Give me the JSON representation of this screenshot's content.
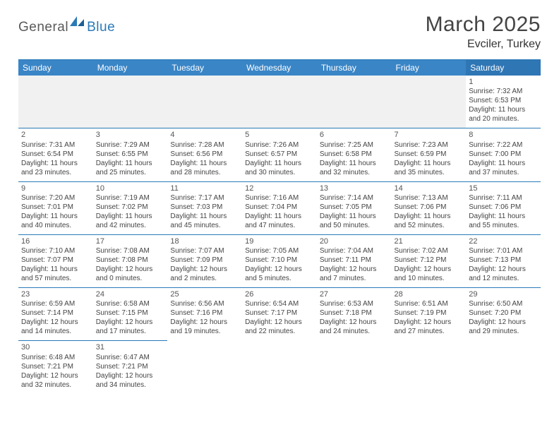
{
  "logo": {
    "part1": "General",
    "part2": "Blue"
  },
  "title": "March 2025",
  "location": "Evciler, Turkey",
  "colors": {
    "header_bg": "#3a85c6",
    "header_bg_sat": "#2f76b5",
    "border": "#2a7ab8",
    "logo_gray": "#5a5a5a",
    "logo_blue": "#2a7ab8"
  },
  "weekdays": [
    "Sunday",
    "Monday",
    "Tuesday",
    "Wednesday",
    "Thursday",
    "Friday",
    "Saturday"
  ],
  "weeks": [
    [
      null,
      null,
      null,
      null,
      null,
      null,
      {
        "n": "1",
        "sr": "Sunrise: 7:32 AM",
        "ss": "Sunset: 6:53 PM",
        "dl": "Daylight: 11 hours and 20 minutes."
      }
    ],
    [
      {
        "n": "2",
        "sr": "Sunrise: 7:31 AM",
        "ss": "Sunset: 6:54 PM",
        "dl": "Daylight: 11 hours and 23 minutes."
      },
      {
        "n": "3",
        "sr": "Sunrise: 7:29 AM",
        "ss": "Sunset: 6:55 PM",
        "dl": "Daylight: 11 hours and 25 minutes."
      },
      {
        "n": "4",
        "sr": "Sunrise: 7:28 AM",
        "ss": "Sunset: 6:56 PM",
        "dl": "Daylight: 11 hours and 28 minutes."
      },
      {
        "n": "5",
        "sr": "Sunrise: 7:26 AM",
        "ss": "Sunset: 6:57 PM",
        "dl": "Daylight: 11 hours and 30 minutes."
      },
      {
        "n": "6",
        "sr": "Sunrise: 7:25 AM",
        "ss": "Sunset: 6:58 PM",
        "dl": "Daylight: 11 hours and 32 minutes."
      },
      {
        "n": "7",
        "sr": "Sunrise: 7:23 AM",
        "ss": "Sunset: 6:59 PM",
        "dl": "Daylight: 11 hours and 35 minutes."
      },
      {
        "n": "8",
        "sr": "Sunrise: 7:22 AM",
        "ss": "Sunset: 7:00 PM",
        "dl": "Daylight: 11 hours and 37 minutes."
      }
    ],
    [
      {
        "n": "9",
        "sr": "Sunrise: 7:20 AM",
        "ss": "Sunset: 7:01 PM",
        "dl": "Daylight: 11 hours and 40 minutes."
      },
      {
        "n": "10",
        "sr": "Sunrise: 7:19 AM",
        "ss": "Sunset: 7:02 PM",
        "dl": "Daylight: 11 hours and 42 minutes."
      },
      {
        "n": "11",
        "sr": "Sunrise: 7:17 AM",
        "ss": "Sunset: 7:03 PM",
        "dl": "Daylight: 11 hours and 45 minutes."
      },
      {
        "n": "12",
        "sr": "Sunrise: 7:16 AM",
        "ss": "Sunset: 7:04 PM",
        "dl": "Daylight: 11 hours and 47 minutes."
      },
      {
        "n": "13",
        "sr": "Sunrise: 7:14 AM",
        "ss": "Sunset: 7:05 PM",
        "dl": "Daylight: 11 hours and 50 minutes."
      },
      {
        "n": "14",
        "sr": "Sunrise: 7:13 AM",
        "ss": "Sunset: 7:06 PM",
        "dl": "Daylight: 11 hours and 52 minutes."
      },
      {
        "n": "15",
        "sr": "Sunrise: 7:11 AM",
        "ss": "Sunset: 7:06 PM",
        "dl": "Daylight: 11 hours and 55 minutes."
      }
    ],
    [
      {
        "n": "16",
        "sr": "Sunrise: 7:10 AM",
        "ss": "Sunset: 7:07 PM",
        "dl": "Daylight: 11 hours and 57 minutes."
      },
      {
        "n": "17",
        "sr": "Sunrise: 7:08 AM",
        "ss": "Sunset: 7:08 PM",
        "dl": "Daylight: 12 hours and 0 minutes."
      },
      {
        "n": "18",
        "sr": "Sunrise: 7:07 AM",
        "ss": "Sunset: 7:09 PM",
        "dl": "Daylight: 12 hours and 2 minutes."
      },
      {
        "n": "19",
        "sr": "Sunrise: 7:05 AM",
        "ss": "Sunset: 7:10 PM",
        "dl": "Daylight: 12 hours and 5 minutes."
      },
      {
        "n": "20",
        "sr": "Sunrise: 7:04 AM",
        "ss": "Sunset: 7:11 PM",
        "dl": "Daylight: 12 hours and 7 minutes."
      },
      {
        "n": "21",
        "sr": "Sunrise: 7:02 AM",
        "ss": "Sunset: 7:12 PM",
        "dl": "Daylight: 12 hours and 10 minutes."
      },
      {
        "n": "22",
        "sr": "Sunrise: 7:01 AM",
        "ss": "Sunset: 7:13 PM",
        "dl": "Daylight: 12 hours and 12 minutes."
      }
    ],
    [
      {
        "n": "23",
        "sr": "Sunrise: 6:59 AM",
        "ss": "Sunset: 7:14 PM",
        "dl": "Daylight: 12 hours and 14 minutes."
      },
      {
        "n": "24",
        "sr": "Sunrise: 6:58 AM",
        "ss": "Sunset: 7:15 PM",
        "dl": "Daylight: 12 hours and 17 minutes."
      },
      {
        "n": "25",
        "sr": "Sunrise: 6:56 AM",
        "ss": "Sunset: 7:16 PM",
        "dl": "Daylight: 12 hours and 19 minutes."
      },
      {
        "n": "26",
        "sr": "Sunrise: 6:54 AM",
        "ss": "Sunset: 7:17 PM",
        "dl": "Daylight: 12 hours and 22 minutes."
      },
      {
        "n": "27",
        "sr": "Sunrise: 6:53 AM",
        "ss": "Sunset: 7:18 PM",
        "dl": "Daylight: 12 hours and 24 minutes."
      },
      {
        "n": "28",
        "sr": "Sunrise: 6:51 AM",
        "ss": "Sunset: 7:19 PM",
        "dl": "Daylight: 12 hours and 27 minutes."
      },
      {
        "n": "29",
        "sr": "Sunrise: 6:50 AM",
        "ss": "Sunset: 7:20 PM",
        "dl": "Daylight: 12 hours and 29 minutes."
      }
    ],
    [
      {
        "n": "30",
        "sr": "Sunrise: 6:48 AM",
        "ss": "Sunset: 7:21 PM",
        "dl": "Daylight: 12 hours and 32 minutes."
      },
      {
        "n": "31",
        "sr": "Sunrise: 6:47 AM",
        "ss": "Sunset: 7:21 PM",
        "dl": "Daylight: 12 hours and 34 minutes."
      },
      null,
      null,
      null,
      null,
      null
    ]
  ]
}
